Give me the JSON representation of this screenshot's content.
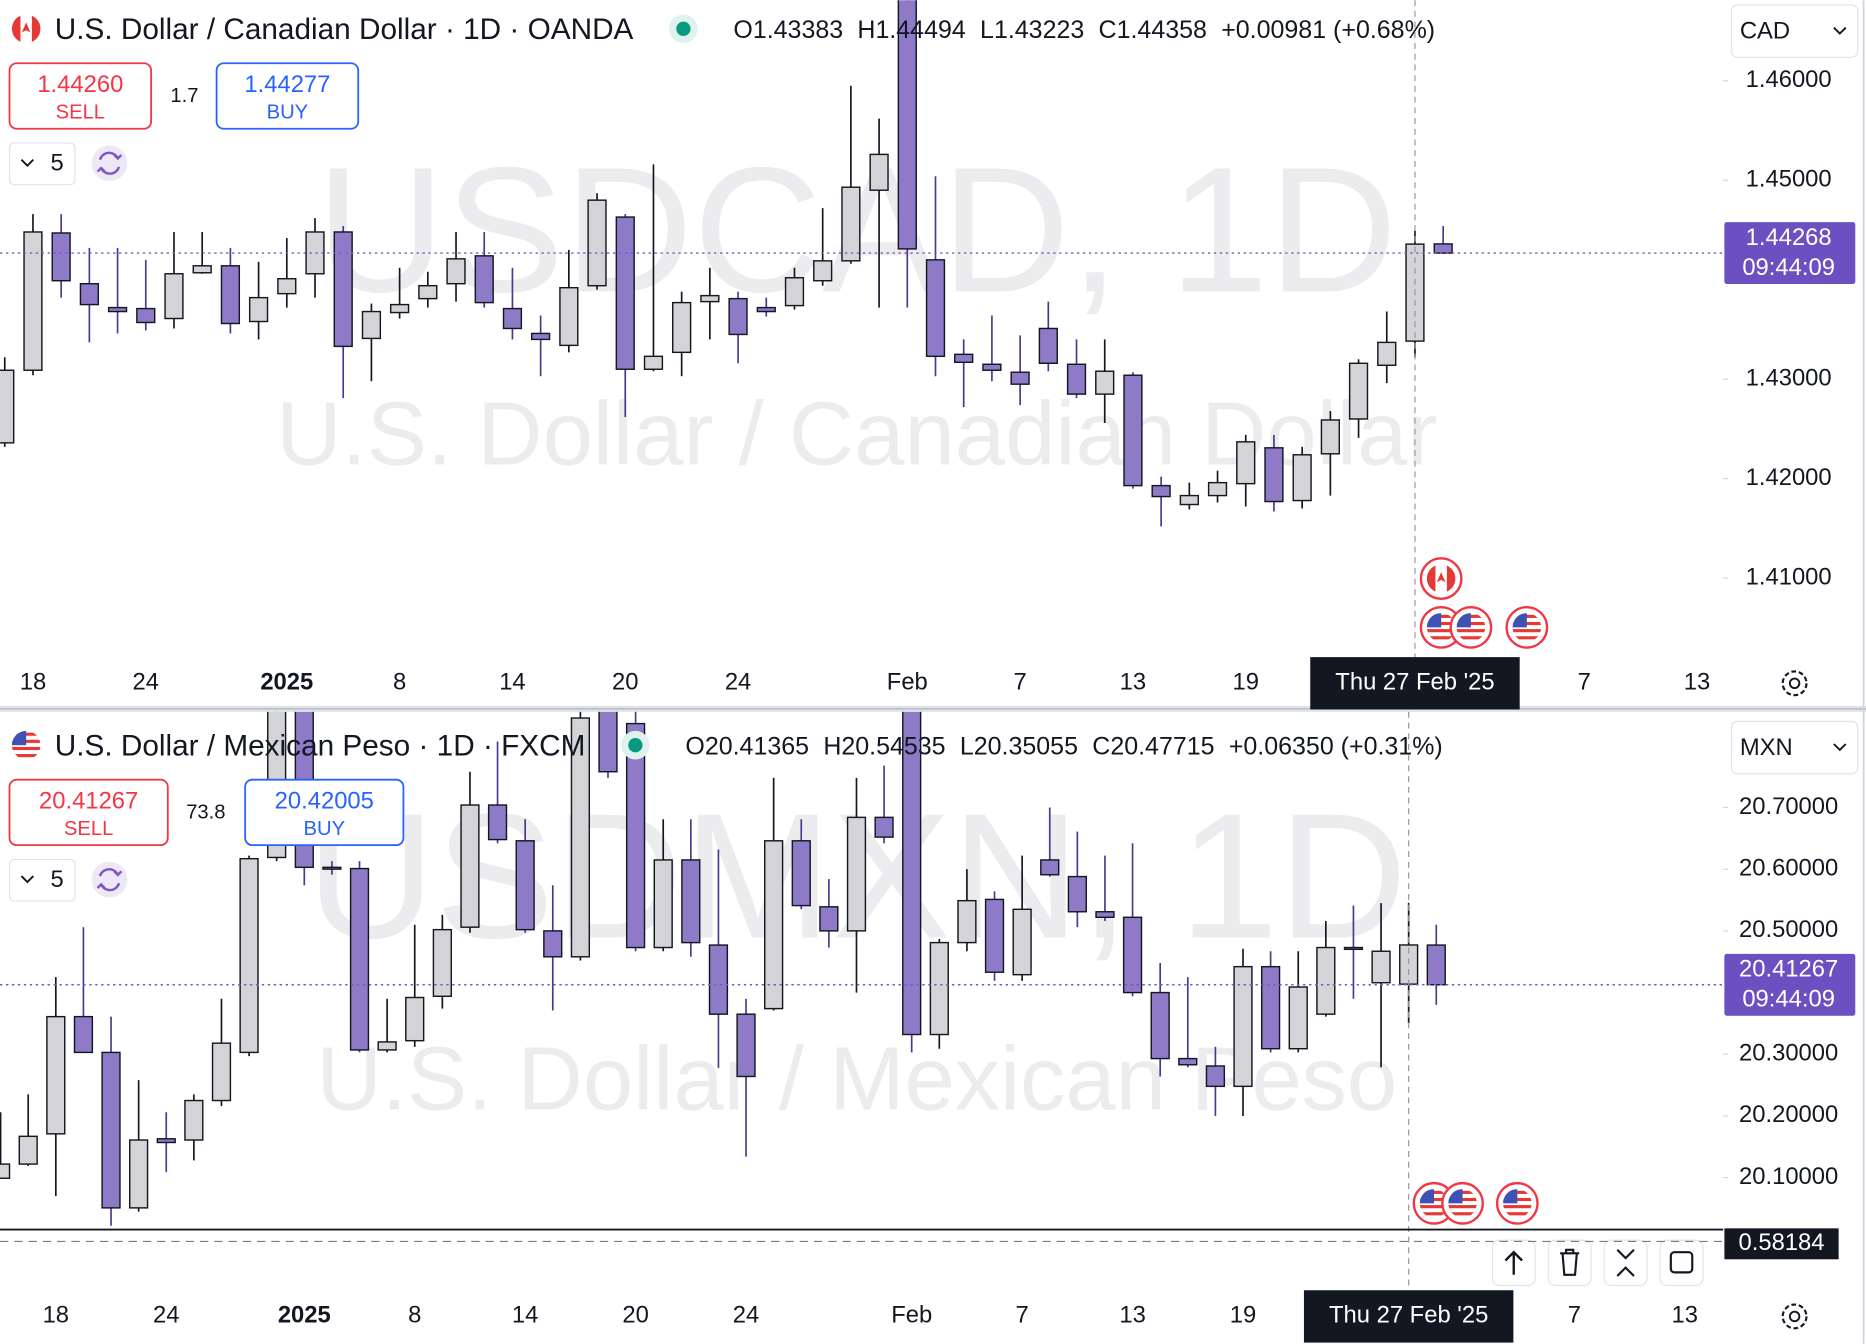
{
  "chart_data": [
    {
      "type": "candlestick",
      "title": "U.S. Dollar / Canadian Dollar · 1D · OANDA",
      "ohlc": [
        {
          "key": "O",
          "value": "1.43383"
        },
        {
          "key": "H",
          "value": "1.44494"
        },
        {
          "key": "L",
          "value": "1.43223"
        },
        {
          "key": "C",
          "value": "1.44358"
        }
      ],
      "change": "+0.00981 (+0.68%)",
      "sell": {
        "price": "1.44260",
        "label": "SELL"
      },
      "buy": {
        "price": "1.44277",
        "label": "BUY"
      },
      "spread": 1.7,
      "interval": 5,
      "currency": "CAD",
      "watermark": [
        "USDCAD, 1D",
        "U.S. Dollar / Canadian Dollar"
      ],
      "up_color": "#d4d4d6",
      "down_color": "#8f7ac8",
      "last_price": 1.44268,
      "countdown": "09:44:09",
      "crosshair": "Thu 27 Feb '25",
      "grid": false,
      "ylim": [
        1.4017,
        1.4681
      ],
      "yticks": [
        {
          "value": 1.41,
          "label": "1.41000"
        },
        {
          "value": 1.42,
          "label": "1.42000"
        },
        {
          "value": 1.43,
          "label": "1.43000"
        },
        {
          "value": 1.45,
          "label": "1.45000"
        },
        {
          "value": 1.46,
          "label": "1.46000"
        }
      ],
      "categories": [
        null,
        "18",
        null,
        null,
        null,
        "24",
        null,
        null,
        null,
        null,
        "2025",
        null,
        null,
        null,
        "8",
        null,
        null,
        null,
        "14",
        null,
        null,
        null,
        "20",
        null,
        null,
        null,
        "24",
        null,
        null,
        null,
        null,
        null,
        "Feb",
        null,
        null,
        null,
        "7",
        null,
        null,
        null,
        "13",
        null,
        null,
        null,
        "19",
        null,
        null,
        null,
        null,
        null,
        "Thu 27 Feb '25",
        null,
        null,
        null,
        null,
        null,
        "7",
        null,
        null,
        null,
        "13"
      ],
      "open": [
        1.4236,
        1.4309,
        1.4447,
        1.4396,
        1.4372,
        1.4371,
        1.4361,
        1.4407,
        1.4414,
        1.4358,
        1.4386,
        1.4406,
        1.4448,
        1.4341,
        1.4367,
        1.4381,
        1.4396,
        1.4424,
        1.4371,
        1.4346,
        1.4334,
        1.4394,
        1.4463,
        1.431,
        1.4327,
        1.4378,
        1.4381,
        1.4372,
        1.4374,
        1.4399,
        1.4419,
        1.449,
        1.472,
        1.442,
        1.4325,
        1.4315,
        1.4307,
        1.4351,
        1.4315,
        1.4285,
        1.4304,
        1.4193,
        1.4174,
        1.4183,
        1.4195,
        1.4231,
        1.4178,
        1.4225,
        1.426,
        1.4314,
        1.43383,
        1.4436,
        null,
        null,
        null,
        null,
        null,
        null,
        null,
        null,
        null
      ],
      "high": [
        1.4322,
        1.4466,
        1.4466,
        1.4432,
        1.4432,
        1.442,
        1.4448,
        1.4448,
        1.4432,
        1.4418,
        1.4442,
        1.4462,
        1.4454,
        1.4376,
        1.4412,
        1.4408,
        1.4448,
        1.4448,
        1.4412,
        1.4364,
        1.443,
        1.4487,
        1.4466,
        1.4516,
        1.4388,
        1.4412,
        1.4388,
        1.4382,
        1.4412,
        1.4472,
        1.4595,
        1.4562,
        1.4793,
        1.4504,
        1.434,
        1.4364,
        1.4344,
        1.4378,
        1.434,
        1.434,
        1.4307,
        1.4202,
        1.4196,
        1.4208,
        1.4244,
        1.4244,
        1.4232,
        1.4268,
        1.432,
        1.4368,
        1.44494,
        1.4454,
        null,
        null,
        null,
        null,
        null,
        null,
        null,
        null,
        null
      ],
      "low": [
        1.4232,
        1.4304,
        1.4382,
        1.4337,
        1.4346,
        1.4349,
        1.4351,
        1.4406,
        1.4346,
        1.434,
        1.4372,
        1.4382,
        1.4281,
        1.4298,
        1.4361,
        1.4372,
        1.4378,
        1.4372,
        1.434,
        1.4303,
        1.4327,
        1.439,
        1.4262,
        1.4308,
        1.4303,
        1.434,
        1.4316,
        1.4363,
        1.437,
        1.4394,
        1.4416,
        1.4372,
        1.4372,
        1.4303,
        1.4272,
        1.4298,
        1.4274,
        1.4308,
        1.4281,
        1.4256,
        1.419,
        1.4152,
        1.4169,
        1.4176,
        1.4172,
        1.4167,
        1.417,
        1.4183,
        1.4241,
        1.4296,
        1.43223,
        1.4426,
        null,
        null,
        null,
        null,
        null,
        null,
        null,
        null,
        null
      ],
      "close": [
        1.4309,
        1.4448,
        1.4399,
        1.4375,
        1.4368,
        1.4357,
        1.4406,
        1.4414,
        1.4356,
        1.4382,
        1.4401,
        1.4448,
        1.4333,
        1.4368,
        1.4375,
        1.4394,
        1.4421,
        1.4377,
        1.4351,
        1.434,
        1.4392,
        1.448,
        1.431,
        1.4323,
        1.4377,
        1.4384,
        1.4345,
        1.4368,
        1.4402,
        1.4419,
        1.4493,
        1.4526,
        1.4431,
        1.4323,
        1.4317,
        1.4309,
        1.4295,
        1.4316,
        1.4285,
        1.4308,
        1.4193,
        1.4182,
        1.4183,
        1.4196,
        1.4237,
        1.4177,
        1.4224,
        1.4259,
        1.4316,
        1.4337,
        1.44358,
        1.44268,
        null,
        null,
        null,
        null,
        null,
        null,
        null,
        null,
        null
      ]
    },
    {
      "type": "candlestick",
      "title": "U.S. Dollar / Mexican Peso · 1D · FXCM",
      "ohlc": [
        {
          "key": "O",
          "value": "20.41365"
        },
        {
          "key": "H",
          "value": "20.54535"
        },
        {
          "key": "L",
          "value": "20.35055"
        },
        {
          "key": "C",
          "value": "20.47715"
        }
      ],
      "change": "+0.06350 (+0.31%)",
      "sell": {
        "price": "20.41267",
        "label": "SELL"
      },
      "buy": {
        "price": "20.42005",
        "label": "BUY"
      },
      "spread": 73.8,
      "interval": 5,
      "currency": "MXN",
      "watermark": [
        "USDMXN, 1D",
        "U.S. Dollar / Mexican Peso"
      ],
      "up_color": "#d4d4d6",
      "down_color": "#8f7ac8",
      "last_price": 20.41267,
      "countdown": "09:44:09",
      "crosshair": "Thu 27 Feb '25",
      "indicator_value": 0.58184,
      "grid": false,
      "ylim": [
        20.0159,
        20.855
      ],
      "yticks": [
        {
          "value": 20.1,
          "label": "20.10000"
        },
        {
          "value": 20.2,
          "label": "20.20000"
        },
        {
          "value": 20.3,
          "label": "20.30000"
        },
        {
          "value": 20.5,
          "label": "20.50000"
        },
        {
          "value": 20.6,
          "label": "20.60000"
        },
        {
          "value": 20.7,
          "label": "20.70000"
        }
      ],
      "categories": [
        null,
        null,
        "18",
        null,
        null,
        null,
        "24",
        null,
        null,
        null,
        null,
        "2025",
        null,
        null,
        null,
        "8",
        null,
        null,
        null,
        "14",
        null,
        null,
        null,
        "20",
        null,
        null,
        null,
        "24",
        null,
        null,
        null,
        null,
        null,
        "Feb",
        null,
        null,
        null,
        "7",
        null,
        null,
        null,
        "13",
        null,
        null,
        null,
        "19",
        null,
        null,
        null,
        null,
        null,
        "Thu 27 Feb '25",
        null,
        null,
        null,
        null,
        null,
        "7",
        null,
        null,
        null,
        "13"
      ],
      "open": [
        20.099,
        20.122,
        20.171,
        20.361,
        20.303,
        20.051,
        20.163,
        20.161,
        20.225,
        20.303,
        20.619,
        20.88,
        20.603,
        20.601,
        20.307,
        20.322,
        20.394,
        20.506,
        20.704,
        20.646,
        20.5,
        20.458,
        20.88,
        20.836,
        20.473,
        20.615,
        20.477,
        20.365,
        20.374,
        20.646,
        20.539,
        20.5,
        20.684,
        20.95,
        20.332,
        20.481,
        20.551,
        20.429,
        20.615,
        20.588,
        20.531,
        20.522,
        20.4,
        20.293,
        20.281,
        20.248,
        20.442,
        20.309,
        20.365,
        20.473,
        20.416,
        20.41365,
        20.477,
        null,
        null,
        null,
        null,
        null,
        null,
        null,
        null,
        null
      ],
      "high": [
        20.206,
        20.235,
        20.425,
        20.506,
        20.361,
        20.258,
        20.206,
        20.235,
        20.39,
        20.622,
        20.93,
        20.92,
        20.613,
        20.613,
        20.39,
        20.51,
        20.526,
        20.758,
        20.807,
        20.681,
        20.574,
        20.87,
        20.92,
        20.87,
        20.681,
        20.681,
        20.632,
        20.39,
        20.748,
        20.681,
        20.584,
        20.748,
        20.768,
        21.28,
        20.487,
        20.6,
        20.564,
        20.622,
        20.7,
        20.661,
        20.622,
        20.642,
        20.448,
        20.425,
        20.312,
        20.471,
        20.467,
        20.467,
        20.516,
        20.541,
        20.545,
        20.54535,
        20.51,
        null,
        null,
        null,
        null,
        null,
        null,
        null,
        null,
        null
      ],
      "low": [
        20.099,
        20.119,
        20.07,
        20.303,
        20.022,
        20.045,
        20.109,
        20.128,
        20.216,
        20.297,
        20.613,
        20.574,
        20.591,
        20.303,
        20.303,
        20.312,
        20.374,
        20.497,
        20.642,
        20.497,
        20.371,
        20.452,
        20.748,
        20.467,
        20.467,
        20.458,
        20.278,
        20.134,
        20.371,
        20.535,
        20.473,
        20.4,
        20.642,
        20.303,
        20.309,
        20.467,
        20.419,
        20.419,
        20.588,
        20.506,
        20.516,
        20.394,
        20.264,
        20.279,
        20.2,
        20.2,
        20.303,
        20.303,
        20.361,
        20.39,
        20.279,
        20.35055,
        20.38,
        null,
        null,
        null,
        null,
        null,
        null,
        null,
        null,
        null
      ],
      "close": [
        20.122,
        20.167,
        20.361,
        20.303,
        20.051,
        20.161,
        20.157,
        20.225,
        20.318,
        20.617,
        20.88,
        20.603,
        20.601,
        20.307,
        20.32,
        20.392,
        20.502,
        20.704,
        20.648,
        20.502,
        20.458,
        20.845,
        20.758,
        20.473,
        20.615,
        20.481,
        20.365,
        20.264,
        20.646,
        20.541,
        20.5,
        20.684,
        20.652,
        20.332,
        20.481,
        20.549,
        20.433,
        20.535,
        20.591,
        20.531,
        20.522,
        20.4,
        20.293,
        20.283,
        20.248,
        20.442,
        20.309,
        20.409,
        20.473,
        20.471,
        20.467,
        20.47715,
        20.41267,
        null,
        null,
        null,
        null,
        null,
        null,
        null,
        null,
        null
      ]
    }
  ]
}
